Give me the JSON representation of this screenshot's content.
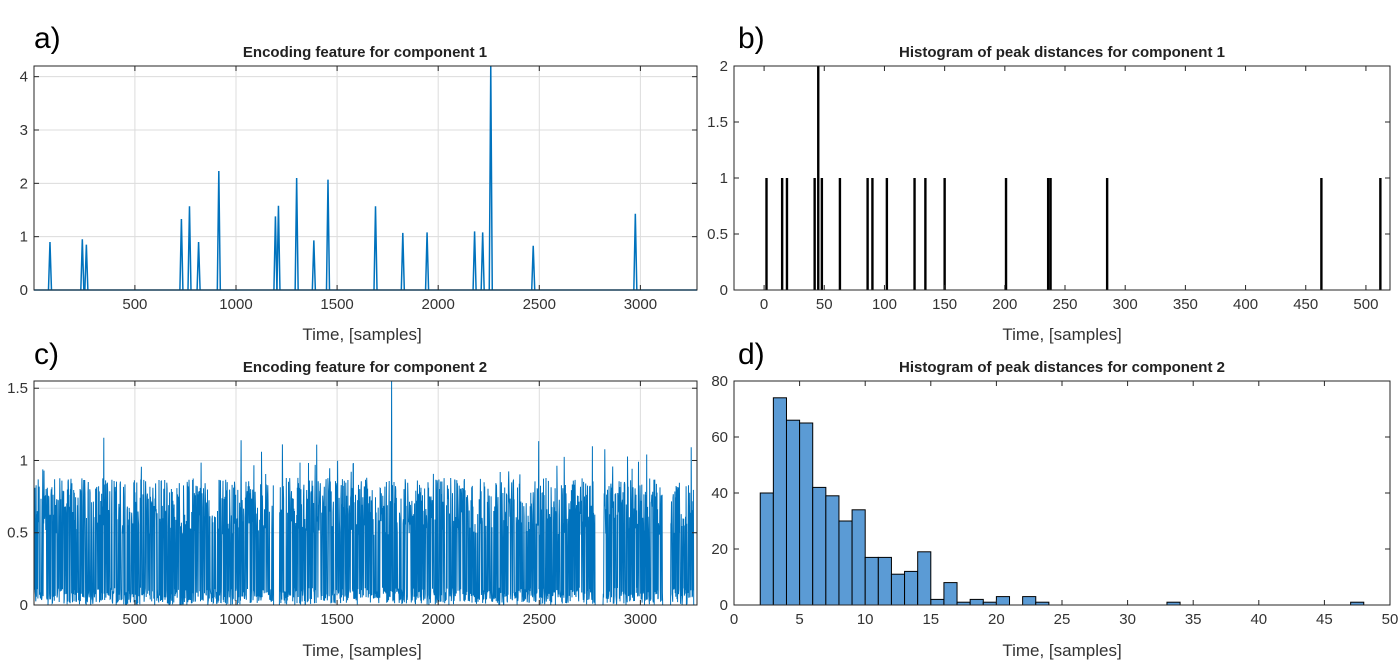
{
  "panels": [
    {
      "letter": "a)",
      "title": "Encoding feature for component 1",
      "xlabel": "Time, [samples]"
    },
    {
      "letter": "b)",
      "title": "Histogram of peak distances for component 1",
      "xlabel": "Time, [samples]"
    },
    {
      "letter": "c)",
      "title": "Encoding feature for component 2",
      "xlabel": "Time, [samples]"
    },
    {
      "letter": "d)",
      "title": "Histogram of peak distances for component 2",
      "xlabel": "Time, [samples]"
    }
  ],
  "chart_data": [
    {
      "type": "line",
      "title": "Encoding feature for component 1",
      "xlabel": "Time, [samples]",
      "ylabel": "",
      "xlim": [
        1,
        3280
      ],
      "ylim": [
        0,
        4.2
      ],
      "xticks": [
        500,
        1000,
        1500,
        2000,
        2500,
        3000
      ],
      "yticks": [
        0,
        1,
        2,
        3,
        4
      ],
      "grid": true,
      "color": "#0072BD",
      "spikes": [
        {
          "x": 80,
          "y": 0.9
        },
        {
          "x": 240,
          "y": 0.95
        },
        {
          "x": 260,
          "y": 0.85
        },
        {
          "x": 730,
          "y": 1.33
        },
        {
          "x": 770,
          "y": 1.57
        },
        {
          "x": 815,
          "y": 0.9
        },
        {
          "x": 915,
          "y": 2.23
        },
        {
          "x": 1195,
          "y": 1.38
        },
        {
          "x": 1210,
          "y": 1.58
        },
        {
          "x": 1300,
          "y": 2.1
        },
        {
          "x": 1385,
          "y": 0.93
        },
        {
          "x": 1455,
          "y": 2.07
        },
        {
          "x": 1690,
          "y": 1.57
        },
        {
          "x": 1825,
          "y": 1.07
        },
        {
          "x": 1945,
          "y": 1.08
        },
        {
          "x": 2180,
          "y": 1.1
        },
        {
          "x": 2220,
          "y": 1.08
        },
        {
          "x": 2260,
          "y": 4.2
        },
        {
          "x": 2470,
          "y": 0.83
        },
        {
          "x": 2975,
          "y": 1.43
        }
      ]
    },
    {
      "type": "bar",
      "title": "Histogram of peak distances for component 1",
      "xlabel": "Time, [samples]",
      "ylabel": "",
      "xlim": [
        -25,
        520
      ],
      "ylim": [
        0,
        2
      ],
      "xticks": [
        0,
        50,
        100,
        150,
        200,
        250,
        300,
        350,
        400,
        450,
        500
      ],
      "yticks": [
        0,
        0.5,
        1,
        1.5,
        2
      ],
      "grid": false,
      "x": [
        2,
        15,
        19,
        42,
        45,
        48,
        63,
        86,
        90,
        102,
        125,
        134,
        150,
        201,
        236,
        238,
        285,
        463,
        512
      ],
      "values": [
        1,
        1,
        1,
        1,
        2,
        1,
        1,
        1,
        1,
        1,
        1,
        1,
        1,
        1,
        1,
        1,
        1,
        1,
        1
      ]
    },
    {
      "type": "line",
      "title": "Encoding feature for component 2",
      "xlabel": "Time, [samples]",
      "ylabel": "",
      "xlim": [
        1,
        3280
      ],
      "ylim": [
        0,
        1.55
      ],
      "xticks": [
        500,
        1000,
        1500,
        2000,
        2500,
        3000
      ],
      "yticks": [
        0,
        0.5,
        1,
        1.5
      ],
      "grid": true,
      "color": "#0072BD",
      "dense_signal": {
        "baseline": 0.88,
        "max": 1.55,
        "max_at": 1770
      },
      "gaps": [
        [
          1185,
          1215
        ],
        [
          2775,
          2815
        ],
        [
          3110,
          3150
        ],
        [
          3265,
          3280
        ]
      ]
    },
    {
      "type": "bar",
      "title": "Histogram of peak distances for component 2",
      "xlabel": "Time, [samples]",
      "ylabel": "",
      "xlim": [
        0,
        50
      ],
      "ylim": [
        0,
        80
      ],
      "xticks": [
        0,
        5,
        10,
        15,
        20,
        25,
        30,
        35,
        40,
        45,
        50
      ],
      "yticks": [
        0,
        20,
        40,
        60,
        80
      ],
      "grid": false,
      "color": "#5B9BD5",
      "bin_width": 1,
      "x": [
        2,
        3,
        4,
        5,
        6,
        7,
        8,
        9,
        10,
        11,
        12,
        13,
        14,
        15,
        16,
        17,
        18,
        19,
        20,
        21,
        22,
        23,
        33,
        47
      ],
      "values": [
        40,
        74,
        66,
        65,
        42,
        39,
        30,
        34,
        17,
        17,
        11,
        12,
        19,
        2,
        8,
        1,
        2,
        1,
        3,
        0,
        3,
        1,
        1,
        1
      ]
    }
  ]
}
